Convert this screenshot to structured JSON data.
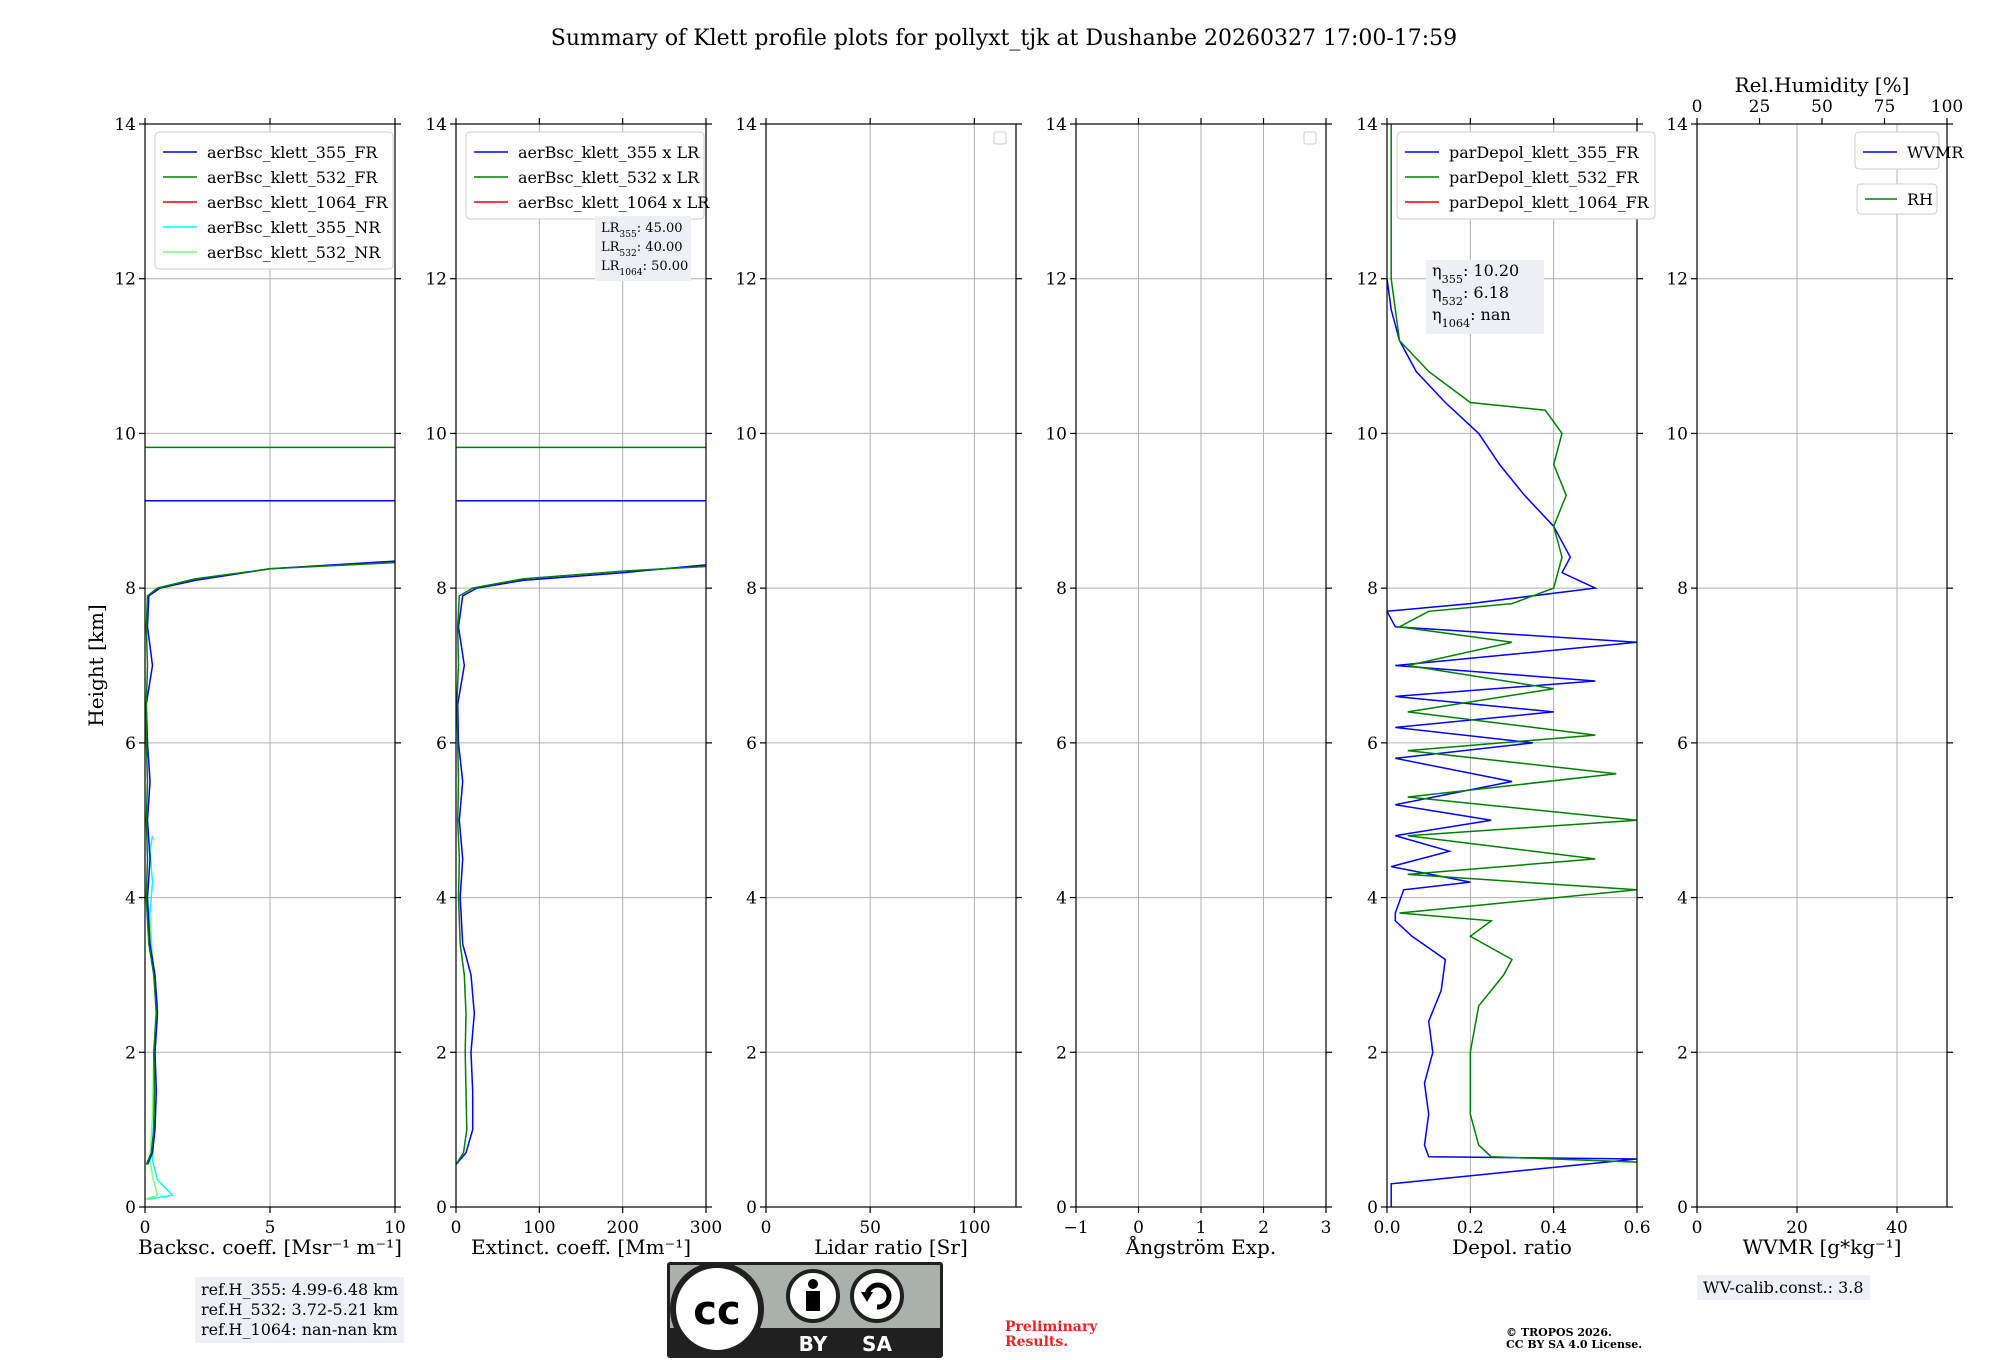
{
  "title": "Summary of Klett profile plots for pollyxt_tjk at Dushanbe 20260327 17:00-17:59",
  "reference_heights": [
    "ref.H_355: 4.99-6.48 km",
    "ref.H_532: 3.72-5.21 km",
    "ref.H_1064: nan-nan km"
  ],
  "wv_calib": "WV-calib.const.: 3.8",
  "preliminary": [
    "Preliminary",
    "Results."
  ],
  "copyright": [
    "© TROPOS 2026.",
    "CC BY SA 4.0 License."
  ],
  "license_logo": {
    "cc": "cc",
    "by": "BY",
    "sa": "SA"
  },
  "colors": {
    "blue": "#0000ff",
    "green": "#008000",
    "red": "#ff0000",
    "cyan": "#00ffff",
    "lightgreen": "#7cfc7c",
    "grid": "#b0b0b0"
  },
  "chart_data": [
    {
      "type": "line",
      "xlabel": "Backsc. coeff. [Msr⁻¹ m⁻¹]",
      "ylabel": "Height [km]",
      "xlim": [
        0,
        10
      ],
      "ylim": [
        0,
        14
      ],
      "xticks": [
        0,
        5,
        10
      ],
      "yticks": [
        0,
        2,
        4,
        6,
        8,
        10,
        12,
        14
      ],
      "legend": [
        "aerBsc_klett_355_FR",
        "aerBsc_klett_532_FR",
        "aerBsc_klett_1064_FR",
        "aerBsc_klett_355_NR",
        "aerBsc_klett_532_NR"
      ],
      "legend_colors": [
        "#0000ff",
        "#008000",
        "#ff0000",
        "#00ffff",
        "#7cfc7c"
      ],
      "series": [
        {
          "name": "aerBsc_klett_355_NR",
          "color": "#00ffff",
          "points": [
            [
              0.1,
              0.1
            ],
            [
              1.1,
              0.15
            ],
            [
              0.5,
              0.35
            ],
            [
              0.3,
              0.6
            ],
            [
              0.35,
              1.2
            ],
            [
              0.4,
              2.0
            ],
            [
              0.5,
              2.6
            ],
            [
              0.3,
              3.2
            ],
            [
              0.2,
              3.8
            ],
            [
              0.3,
              4.2
            ],
            [
              0.2,
              4.6
            ],
            [
              0.3,
              4.8
            ]
          ]
        },
        {
          "name": "aerBsc_klett_532_NR",
          "color": "#7cfc7c",
          "points": [
            [
              0.0,
              0.1
            ],
            [
              0.5,
              0.15
            ],
            [
              0.3,
              0.4
            ],
            [
              0.2,
              0.6
            ],
            [
              0.3,
              1.2
            ],
            [
              0.35,
              2.0
            ],
            [
              0.45,
              2.6
            ],
            [
              0.3,
              3.2
            ],
            [
              0.2,
              3.8
            ]
          ]
        },
        {
          "name": "aerBsc_klett_355_FR",
          "color": "#0000ff",
          "points": [
            [
              0.1,
              0.55
            ],
            [
              0.3,
              0.7
            ],
            [
              0.4,
              1.0
            ],
            [
              0.45,
              1.5
            ],
            [
              0.4,
              2.0
            ],
            [
              0.5,
              2.5
            ],
            [
              0.4,
              3.0
            ],
            [
              0.2,
              3.4
            ],
            [
              0.1,
              4.0
            ],
            [
              0.2,
              4.5
            ],
            [
              0.1,
              5.0
            ],
            [
              0.2,
              5.5
            ],
            [
              0.1,
              6.0
            ],
            [
              0.05,
              6.5
            ],
            [
              0.3,
              7.0
            ],
            [
              0.1,
              7.5
            ],
            [
              0.15,
              7.9
            ],
            [
              0.6,
              8.0
            ],
            [
              2.0,
              8.1
            ],
            [
              5.0,
              8.25
            ],
            [
              10.0,
              8.35
            ]
          ]
        },
        {
          "name": "aerBsc_klett_532_FR",
          "color": "#008000",
          "points": [
            [
              0.05,
              0.55
            ],
            [
              0.25,
              0.7
            ],
            [
              0.35,
              1.0
            ],
            [
              0.38,
              1.5
            ],
            [
              0.35,
              2.0
            ],
            [
              0.45,
              2.5
            ],
            [
              0.35,
              3.0
            ],
            [
              0.15,
              3.4
            ],
            [
              0.05,
              4.0
            ],
            [
              0.1,
              4.5
            ],
            [
              0.05,
              5.0
            ],
            [
              0.1,
              5.5
            ],
            [
              0.05,
              6.0
            ],
            [
              0.05,
              6.5
            ],
            [
              0.1,
              7.0
            ],
            [
              0.05,
              7.5
            ],
            [
              0.1,
              7.9
            ],
            [
              0.5,
              8.0
            ],
            [
              2.0,
              8.12
            ],
            [
              5.0,
              8.25
            ],
            [
              10.0,
              8.33
            ]
          ]
        }
      ],
      "hlines": [
        {
          "y": 9.82,
          "color": "#008000"
        },
        {
          "y": 9.13,
          "color": "#0000ff"
        }
      ]
    },
    {
      "type": "line",
      "xlabel": "Extinct. coeff. [Mm⁻¹]",
      "xlim": [
        0,
        300
      ],
      "ylim": [
        0,
        14
      ],
      "xticks": [
        0,
        100,
        200,
        300
      ],
      "yticks": [
        0,
        2,
        4,
        6,
        8,
        10,
        12,
        14
      ],
      "legend": [
        "aerBsc_klett_355 x LR",
        "aerBsc_klett_532 x LR",
        "aerBsc_klett_1064 x LR"
      ],
      "legend_colors": [
        "#0000ff",
        "#008000",
        "#ff0000"
      ],
      "annotation": [
        "LR355: 45.00",
        "LR532: 40.00",
        "LR1064: 50.00"
      ],
      "series": [
        {
          "name": "aerBsc_klett_355 x LR",
          "color": "#0000ff",
          "points": [
            [
              0,
              0.55
            ],
            [
              12,
              0.7
            ],
            [
              20,
              1.0
            ],
            [
              20,
              1.5
            ],
            [
              18,
              2.0
            ],
            [
              22,
              2.5
            ],
            [
              18,
              3.0
            ],
            [
              8,
              3.4
            ],
            [
              5,
              4.0
            ],
            [
              8,
              4.5
            ],
            [
              4,
              5.0
            ],
            [
              8,
              5.5
            ],
            [
              3,
              6.0
            ],
            [
              2,
              6.5
            ],
            [
              10,
              7.0
            ],
            [
              3,
              7.5
            ],
            [
              8,
              7.9
            ],
            [
              25,
              8.0
            ],
            [
              80,
              8.1
            ],
            [
              200,
              8.2
            ],
            [
              300,
              8.3
            ]
          ]
        },
        {
          "name": "aerBsc_klett_532 x LR",
          "color": "#008000",
          "points": [
            [
              0,
              0.55
            ],
            [
              9,
              0.7
            ],
            [
              13,
              1.0
            ],
            [
              12,
              1.5
            ],
            [
              11,
              2.0
            ],
            [
              12,
              2.5
            ],
            [
              10,
              3.0
            ],
            [
              5,
              3.4
            ],
            [
              3,
              4.0
            ],
            [
              4,
              4.5
            ],
            [
              2,
              5.0
            ],
            [
              3,
              5.5
            ],
            [
              2,
              6.0
            ],
            [
              1,
              6.5
            ],
            [
              3,
              7.0
            ],
            [
              2,
              7.5
            ],
            [
              4,
              7.9
            ],
            [
              20,
              8.0
            ],
            [
              80,
              8.12
            ],
            [
              200,
              8.22
            ],
            [
              300,
              8.28
            ]
          ]
        }
      ],
      "hlines": [
        {
          "y": 9.82,
          "color": "#008000"
        },
        {
          "y": 9.13,
          "color": "#0000ff"
        }
      ]
    },
    {
      "type": "line",
      "xlabel": "Lidar ratio [Sr]",
      "xlim": [
        0,
        120
      ],
      "ylim": [
        0,
        14
      ],
      "xticks": [
        0,
        50,
        100
      ],
      "yticks": [
        0,
        2,
        4,
        6,
        8,
        10,
        12,
        14
      ],
      "series": []
    },
    {
      "type": "line",
      "xlabel": "Ångström Exp.",
      "xlim": [
        -1,
        3
      ],
      "ylim": [
        0,
        14
      ],
      "xticks": [
        -1,
        0,
        1,
        2,
        3
      ],
      "yticks": [
        0,
        2,
        4,
        6,
        8,
        10,
        12,
        14
      ],
      "series": []
    },
    {
      "type": "line",
      "xlabel": "Depol. ratio",
      "xlim": [
        0,
        0.6
      ],
      "ylim": [
        0,
        14
      ],
      "xticks": [
        0.0,
        0.2,
        0.4,
        0.6
      ],
      "yticks": [
        0,
        2,
        4,
        6,
        8,
        10,
        12,
        14
      ],
      "legend": [
        "parDepol_klett_355_FR",
        "parDepol_klett_532_FR",
        "parDepol_klett_1064_FR"
      ],
      "legend_colors": [
        "#0000ff",
        "#008000",
        "#ff0000"
      ],
      "annotation": [
        "η355: 10.20",
        "η532: 6.18",
        "η1064: nan"
      ],
      "series": [
        {
          "name": "parDepol_klett_355_FR",
          "color": "#0000ff",
          "points": [
            [
              0.01,
              0.0
            ],
            [
              0.01,
              0.3
            ],
            [
              0.6,
              0.62
            ],
            [
              0.1,
              0.65
            ],
            [
              0.09,
              0.8
            ],
            [
              0.1,
              1.2
            ],
            [
              0.09,
              1.6
            ],
            [
              0.11,
              2.0
            ],
            [
              0.1,
              2.4
            ],
            [
              0.13,
              2.8
            ],
            [
              0.14,
              3.2
            ],
            [
              0.06,
              3.5
            ],
            [
              0.02,
              3.7
            ],
            [
              0.02,
              3.8
            ],
            [
              0.04,
              4.1
            ],
            [
              0.2,
              4.2
            ],
            [
              0.01,
              4.4
            ],
            [
              0.15,
              4.6
            ],
            [
              0.02,
              4.8
            ],
            [
              0.25,
              5.0
            ],
            [
              0.02,
              5.2
            ],
            [
              0.3,
              5.5
            ],
            [
              0.02,
              5.8
            ],
            [
              0.35,
              6.0
            ],
            [
              0.02,
              6.2
            ],
            [
              0.4,
              6.4
            ],
            [
              0.02,
              6.6
            ],
            [
              0.5,
              6.8
            ],
            [
              0.02,
              7.0
            ],
            [
              0.6,
              7.3
            ],
            [
              0.02,
              7.5
            ],
            [
              0.0,
              7.7
            ],
            [
              0.2,
              7.8
            ],
            [
              0.5,
              8.0
            ],
            [
              0.42,
              8.2
            ],
            [
              0.44,
              8.4
            ],
            [
              0.4,
              8.8
            ],
            [
              0.33,
              9.2
            ],
            [
              0.27,
              9.6
            ],
            [
              0.22,
              10.0
            ],
            [
              0.14,
              10.4
            ],
            [
              0.07,
              10.8
            ],
            [
              0.03,
              11.2
            ],
            [
              0.01,
              11.6
            ],
            [
              0.0,
              12.0
            ]
          ]
        },
        {
          "name": "parDepol_klett_532_FR",
          "color": "#008000",
          "points": [
            [
              0.6,
              0.58
            ],
            [
              0.25,
              0.65
            ],
            [
              0.22,
              0.8
            ],
            [
              0.2,
              1.2
            ],
            [
              0.2,
              2.0
            ],
            [
              0.22,
              2.6
            ],
            [
              0.28,
              3.0
            ],
            [
              0.3,
              3.2
            ],
            [
              0.2,
              3.5
            ],
            [
              0.25,
              3.7
            ],
            [
              0.03,
              3.8
            ],
            [
              0.6,
              4.1
            ],
            [
              0.05,
              4.3
            ],
            [
              0.5,
              4.5
            ],
            [
              0.05,
              4.8
            ],
            [
              0.6,
              5.0
            ],
            [
              0.05,
              5.3
            ],
            [
              0.55,
              5.6
            ],
            [
              0.05,
              5.9
            ],
            [
              0.5,
              6.1
            ],
            [
              0.05,
              6.4
            ],
            [
              0.4,
              6.7
            ],
            [
              0.05,
              7.0
            ],
            [
              0.3,
              7.3
            ],
            [
              0.03,
              7.5
            ],
            [
              0.1,
              7.7
            ],
            [
              0.3,
              7.8
            ],
            [
              0.4,
              8.0
            ],
            [
              0.42,
              8.4
            ],
            [
              0.4,
              8.8
            ],
            [
              0.43,
              9.2
            ],
            [
              0.4,
              9.6
            ],
            [
              0.42,
              10.0
            ],
            [
              0.38,
              10.3
            ],
            [
              0.2,
              10.4
            ],
            [
              0.1,
              10.8
            ],
            [
              0.03,
              11.2
            ],
            [
              0.01,
              12.0
            ],
            [
              0.01,
              14.0
            ]
          ]
        }
      ]
    },
    {
      "type": "line",
      "xlabel": "WVMR [g*kg⁻¹]",
      "xlim": [
        0,
        50
      ],
      "ylim": [
        0,
        14
      ],
      "xticks": [
        0,
        20,
        40
      ],
      "yticks": [
        0,
        2,
        4,
        6,
        8,
        10,
        12,
        14
      ],
      "top_axis": {
        "label": "Rel.Humidity [%]",
        "xlim": [
          0,
          100
        ],
        "xticks": [
          0,
          25,
          50,
          75,
          100
        ]
      },
      "legend": [
        "WVMR"
      ],
      "legend_colors": [
        "#0000ff"
      ],
      "legend2": [
        "RH"
      ],
      "legend2_colors": [
        "#008000"
      ],
      "series": []
    }
  ]
}
